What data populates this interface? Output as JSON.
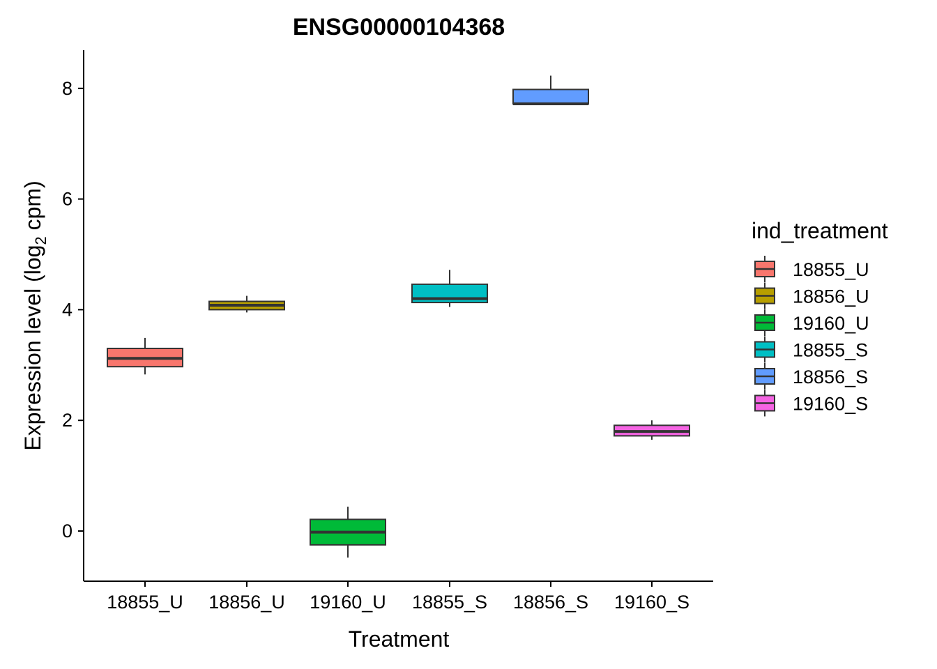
{
  "chart_data": {
    "type": "box",
    "title": "ENSG00000104368",
    "xlabel": "Treatment",
    "ylabel_main": "Expression level (log",
    "ylabel_sub": "2",
    "ylabel_end": " cpm)",
    "ylim": [
      -0.9,
      8.7
    ],
    "yticks": [
      0,
      2,
      4,
      6,
      8
    ],
    "ytick_labels": [
      "0",
      "2",
      "4",
      "6",
      "8"
    ],
    "grid": false,
    "legend": {
      "title": "ind_treatment",
      "placement": "right"
    },
    "categories": [
      "18855_U",
      "18856_U",
      "19160_U",
      "18855_S",
      "18856_S",
      "19160_S"
    ],
    "series": [
      {
        "name": "18855_U",
        "color": "#F8766D",
        "whisker_low": 2.83,
        "q1": 2.97,
        "median": 3.12,
        "q3": 3.3,
        "whisker_high": 3.49
      },
      {
        "name": "18856_U",
        "color": "#B79F00",
        "whisker_low": 3.95,
        "q1": 4.0,
        "median": 4.08,
        "q3": 4.15,
        "whisker_high": 4.25
      },
      {
        "name": "19160_U",
        "color": "#00BA38",
        "whisker_low": -0.48,
        "q1": -0.25,
        "median": -0.02,
        "q3": 0.21,
        "whisker_high": 0.44
      },
      {
        "name": "18855_S",
        "color": "#00BFC4",
        "whisker_low": 4.05,
        "q1": 4.13,
        "median": 4.2,
        "q3": 4.46,
        "whisker_high": 4.72
      },
      {
        "name": "18856_S",
        "color": "#619CFF",
        "whisker_low": 7.72,
        "q1": 7.72,
        "median": 7.72,
        "q3": 7.98,
        "whisker_high": 8.23
      },
      {
        "name": "19160_S",
        "color": "#F564E3",
        "whisker_low": 1.65,
        "q1": 1.72,
        "median": 1.8,
        "q3": 1.91,
        "whisker_high": 2.0
      }
    ]
  }
}
